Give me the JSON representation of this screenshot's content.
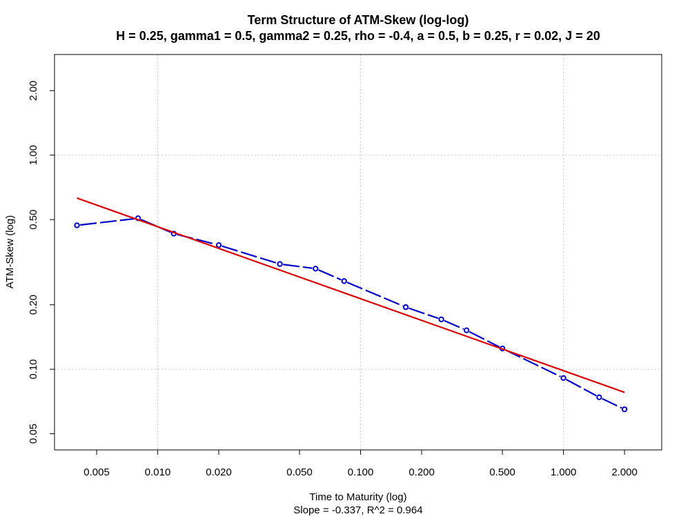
{
  "chart_data": {
    "type": "line",
    "title": "Term Structure of ATM-Skew (log-log)",
    "subtitle": "H = 0.25, gamma1 = 0.5, gamma2 = 0.25, rho = -0.4, a = 0.5, b = 0.25, r = 0.02, J = 20",
    "xlabel": "Time to Maturity (log)",
    "xlabel_sub": "Slope = -0.337, R^2 = 0.964",
    "ylabel": "ATM-Skew (log)",
    "x_scale": "log",
    "y_scale": "log",
    "xlim": [
      0.0031,
      3.05
    ],
    "ylim": [
      0.042,
      2.95
    ],
    "grid": true,
    "x_ticks": [
      {
        "value": 0.005,
        "label": "0.005"
      },
      {
        "value": 0.01,
        "label": "0.010"
      },
      {
        "value": 0.02,
        "label": "0.020"
      },
      {
        "value": 0.05,
        "label": "0.050"
      },
      {
        "value": 0.1,
        "label": "0.100"
      },
      {
        "value": 0.2,
        "label": "0.200"
      },
      {
        "value": 0.5,
        "label": "0.500"
      },
      {
        "value": 1.0,
        "label": "1.000"
      },
      {
        "value": 2.0,
        "label": "2.000"
      }
    ],
    "y_ticks": [
      {
        "value": 0.05,
        "label": "0.05"
      },
      {
        "value": 0.1,
        "label": "0.10"
      },
      {
        "value": 0.2,
        "label": "0.20"
      },
      {
        "value": 0.5,
        "label": "0.50"
      },
      {
        "value": 1.0,
        "label": "1.00"
      },
      {
        "value": 2.0,
        "label": "2.00"
      }
    ],
    "x_grid": [
      0.01,
      0.1,
      1.0
    ],
    "y_grid": [
      0.1,
      1.0
    ],
    "series": [
      {
        "color": "#0000cc",
        "style": "dashed-with-circle-markers",
        "points": [
          {
            "x": 0.004,
            "y": 0.47
          },
          {
            "x": 0.008,
            "y": 0.507
          },
          {
            "x": 0.012,
            "y": 0.43
          },
          {
            "x": 0.02,
            "y": 0.38
          },
          {
            "x": 0.04,
            "y": 0.31
          },
          {
            "x": 0.06,
            "y": 0.295
          },
          {
            "x": 0.083,
            "y": 0.258
          },
          {
            "x": 0.167,
            "y": 0.195
          },
          {
            "x": 0.25,
            "y": 0.171
          },
          {
            "x": 0.333,
            "y": 0.152
          },
          {
            "x": 0.5,
            "y": 0.125
          },
          {
            "x": 1.0,
            "y": 0.091
          },
          {
            "x": 1.5,
            "y": 0.074
          },
          {
            "x": 2.0,
            "y": 0.065
          }
        ]
      },
      {
        "color": "#dd0000",
        "style": "solid-fit-line",
        "points": [
          {
            "x": 0.004,
            "y": 0.63
          },
          {
            "x": 2.0,
            "y": 0.078
          }
        ]
      }
    ]
  }
}
